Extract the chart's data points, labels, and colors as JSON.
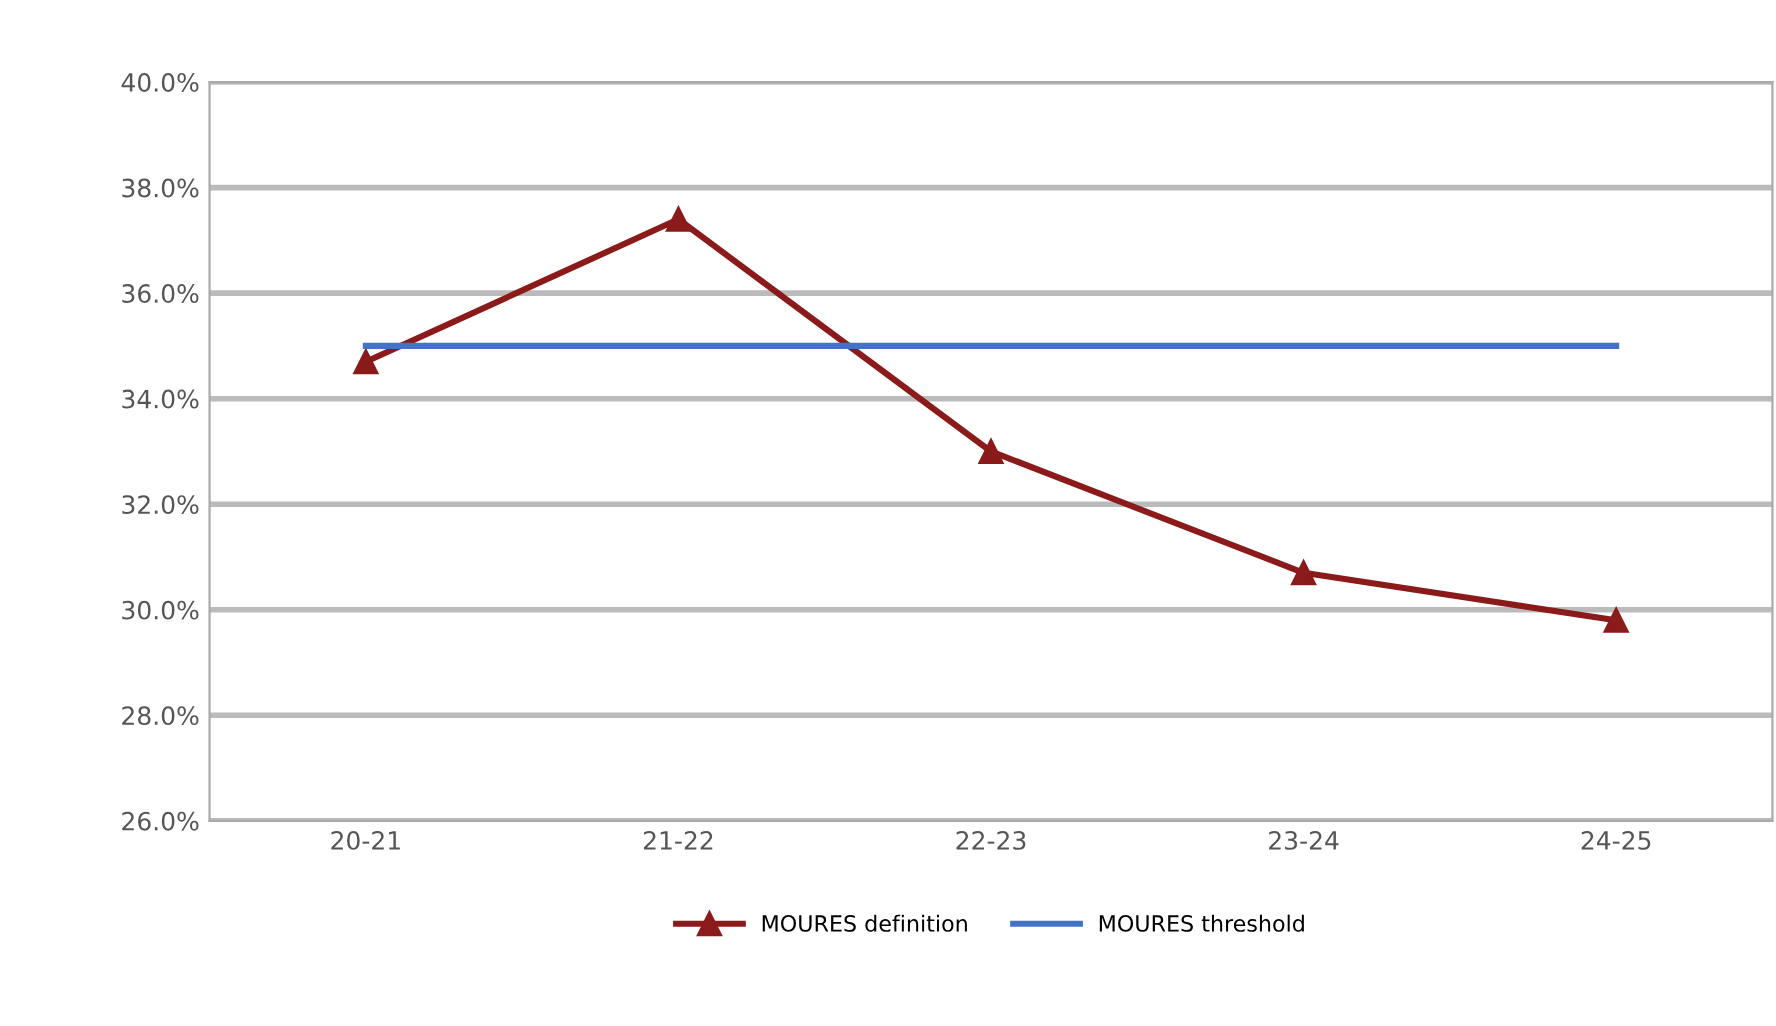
{
  "chart_data": {
    "type": "line",
    "categories": [
      "20-21",
      "21-22",
      "22-23",
      "23-24",
      "24-25"
    ],
    "series": [
      {
        "name": "MOURES definition",
        "color": "#8b1a1a",
        "values": [
          34.7,
          37.4,
          33.0,
          30.7,
          29.8
        ],
        "marker": "triangle"
      },
      {
        "name": "MOURES threshold",
        "color": "#4472c4",
        "values": [
          35.0,
          35.0,
          35.0,
          35.0,
          35.0
        ],
        "marker": "none"
      }
    ],
    "ylim": [
      26,
      40
    ],
    "yticks": [
      {
        "value": 26,
        "label": "26.0%"
      },
      {
        "value": 28,
        "label": "28.0%"
      },
      {
        "value": 30,
        "label": "30.0%"
      },
      {
        "value": 32,
        "label": "32.0%"
      },
      {
        "value": 34,
        "label": "34.0%"
      },
      {
        "value": 36,
        "label": "36.0%"
      },
      {
        "value": 38,
        "label": "38.0%"
      },
      {
        "value": 40,
        "label": "40.0%"
      }
    ],
    "grid": "y",
    "legend": "bottom"
  }
}
